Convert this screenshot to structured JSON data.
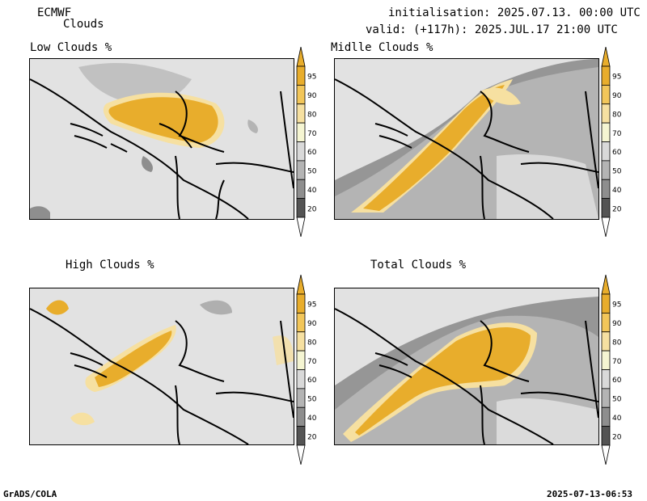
{
  "header": {
    "model": "ECMWF",
    "product": "Clouds",
    "init": "initialisation: 2025.07.13. 00:00 UTC",
    "valid": "valid: (+117h): 2025.JUL.17 21:00 UTC"
  },
  "panels": [
    {
      "title": "Low Clouds %"
    },
    {
      "title": "Midlle Clouds %"
    },
    {
      "title": "High Clouds %"
    },
    {
      "title": "Total Clouds %"
    }
  ],
  "colorbar": {
    "levels": [
      "95",
      "90",
      "80",
      "70",
      "60",
      "50",
      "40",
      "20"
    ],
    "colors": [
      "#e8ad2c",
      "#f2c65a",
      "#f6e0a1",
      "#f5f5d2",
      "#d9d9d9",
      "#b4b4b4",
      "#8e8e8e",
      "#545454"
    ]
  },
  "footer": {
    "left": "GrADS/COLA",
    "right": "2025-07-13-06:53"
  }
}
